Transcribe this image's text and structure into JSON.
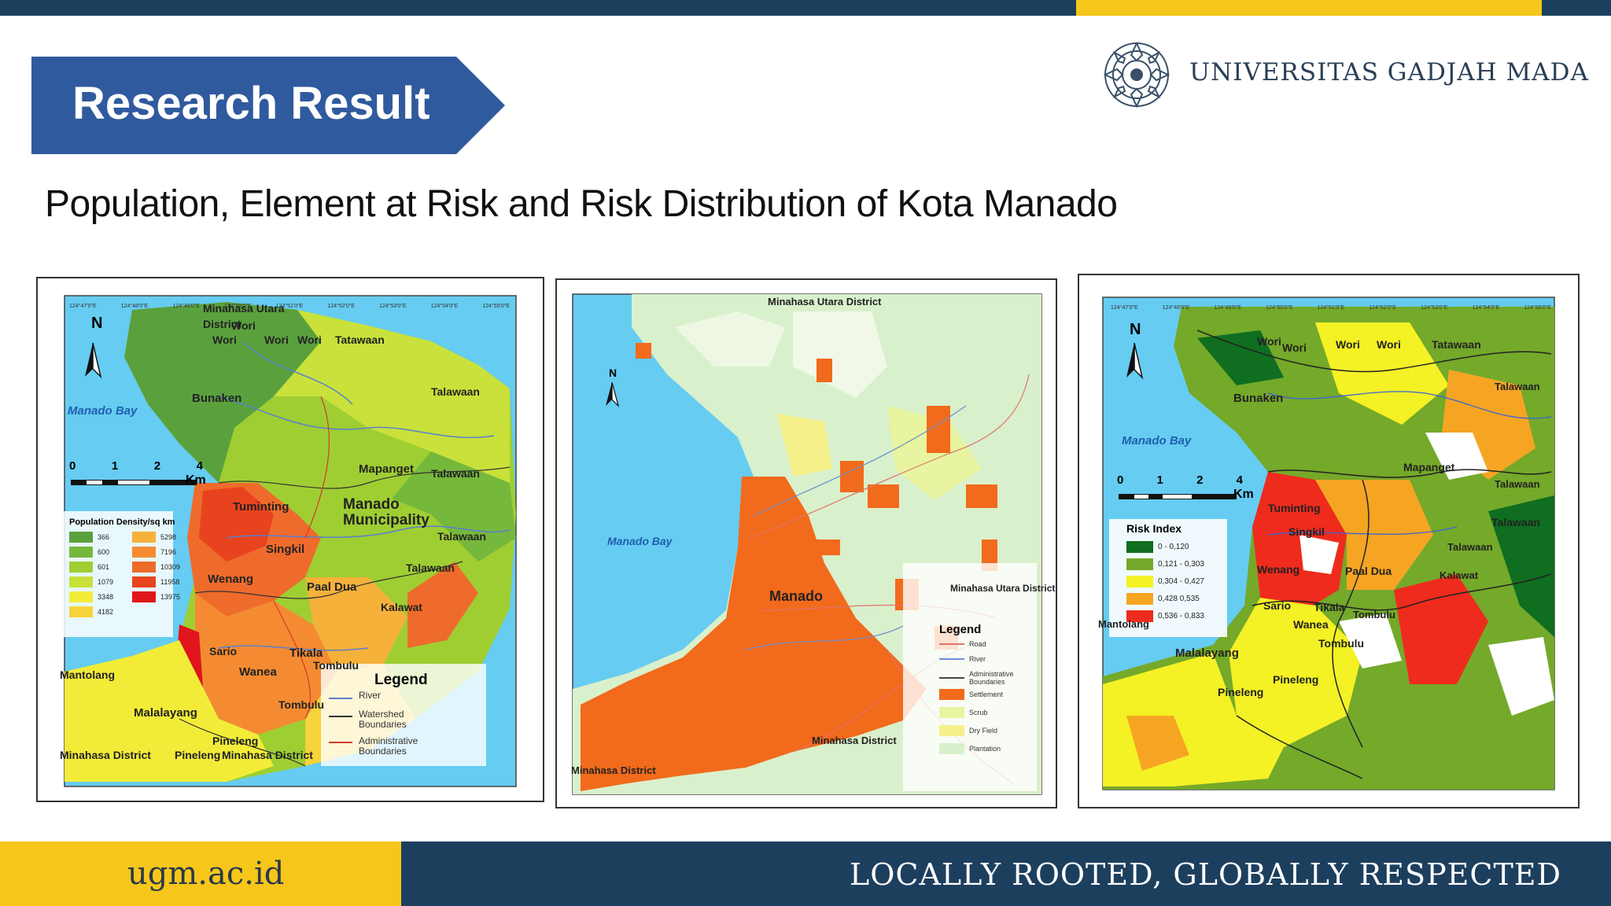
{
  "header": {
    "banner_title": "Research Result",
    "university": "UNIVERSITAS GADJAH MADA",
    "subtitle": "Population, Element at Risk and Risk Distribution of Kota Manado"
  },
  "colors": {
    "navy": "#1d3f5e",
    "gold": "#f6c61a",
    "banner_blue": "#2f5a9e",
    "sea": "#66ccf2"
  },
  "map1": {
    "bay_label": "Manado Bay",
    "north": "N",
    "scale_ticks": [
      "0",
      "1",
      "2",
      "4"
    ],
    "scale_unit": "Km",
    "places": [
      "Minahasa Utara District",
      "Wori",
      "Wori",
      "Wori",
      "Wori",
      "Tatawaan",
      "Bunaken",
      "Talawaan",
      "Mapanget",
      "Talawaan",
      "Tuminting",
      "Manado Municipality",
      "Talawaan",
      "Singkil",
      "Talawaan",
      "Wenang",
      "Paal Dua",
      "Kalawat",
      "Sario",
      "Tikala",
      "Wanea",
      "Tombulu",
      "Mantolang",
      "Malalayang",
      "Pineleng",
      "Tombulu",
      "Minahasa District",
      "Pineleng",
      "Minahasa District"
    ],
    "legend_title": "Population Density/sq km",
    "legend_items": [
      {
        "value": "366",
        "color": "#5aa13e"
      },
      {
        "value": "600",
        "color": "#76b83c"
      },
      {
        "value": "601",
        "color": "#9fce33"
      },
      {
        "value": "1079",
        "color": "#c9e13a"
      },
      {
        "value": "3348",
        "color": "#f2ec38"
      },
      {
        "value": "4182",
        "color": "#f6d33a"
      },
      {
        "value": "5298",
        "color": "#f6b13a"
      },
      {
        "value": "7196",
        "color": "#f48b32"
      },
      {
        "value": "10309",
        "color": "#ef6b2c"
      },
      {
        "value": "11958",
        "color": "#e8431f"
      },
      {
        "value": "13975",
        "color": "#e0161c"
      }
    ],
    "line_legend_title": "Legend",
    "line_legend": [
      "River",
      "Watershed Boundaries",
      "Administrative Boundaries"
    ],
    "top_ticks": [
      "124°47'0\"E",
      "124°48'0\"E",
      "124°49'0\"E",
      "124°50'0\"E",
      "124°51'0\"E",
      "124°52'0\"E",
      "124°53'0\"E",
      "124°54'0\"E",
      "124°55'0\"E"
    ]
  },
  "map2": {
    "bay_label": "Manado Bay",
    "north": "N",
    "places": [
      "Minahasa Utara District",
      "Manado",
      "Minahasa Utara District",
      "Minahasa District",
      "Minahasa District"
    ],
    "legend_title": "Legend",
    "legend_items": [
      {
        "label": "Road",
        "color": "#e0746a",
        "kind": "line"
      },
      {
        "label": "River",
        "color": "#6a8fd0",
        "kind": "line"
      },
      {
        "label": "Administrative Boundaries",
        "color": "#444444",
        "kind": "line"
      },
      {
        "label": "Settlement",
        "color": "#f26a1b",
        "kind": "box"
      },
      {
        "label": "Scrub",
        "color": "#e8f4a0",
        "kind": "box"
      },
      {
        "label": "Dry Field",
        "color": "#f5f08a",
        "kind": "box"
      },
      {
        "label": "Plantation",
        "color": "#d9f0cc",
        "kind": "box"
      }
    ]
  },
  "map3": {
    "bay_label": "Manado Bay",
    "north": "N",
    "scale_ticks": [
      "0",
      "1",
      "2",
      "4"
    ],
    "scale_unit": "Km",
    "places": [
      "Wori",
      "Wori",
      "Wori",
      "Wori",
      "Tatawaan",
      "Bunaken",
      "Talawaan",
      "Mapanget",
      "Talawaan",
      "Tuminting",
      "Talawaan",
      "Singkil",
      "Talawaan",
      "Wenang",
      "Paal Dua",
      "Kalawat",
      "Sario",
      "Tikala",
      "Wanea",
      "Tombulu",
      "Mantolang",
      "Malalayang",
      "Tombulu",
      "Pineleng",
      "Pineleng"
    ],
    "legend_title": "Risk Index",
    "legend_items": [
      {
        "label": "0 - 0,120",
        "color": "#0f6e1f"
      },
      {
        "label": "0,121 - 0,303",
        "color": "#74a92a"
      },
      {
        "label": "0,304 - 0,427",
        "color": "#f4f125"
      },
      {
        "label": "0,428 0,535",
        "color": "#f6a523"
      },
      {
        "label": "0,536 - 0,833",
        "color": "#ef2b1d"
      }
    ],
    "top_ticks": [
      "124°47'0\"E",
      "124°48'0\"E",
      "124°49'0\"E",
      "124°50'0\"E",
      "124°51'0\"E",
      "124°52'0\"E",
      "124°53'0\"E",
      "124°54'0\"E",
      "124°55'0\"E"
    ]
  },
  "footer": {
    "url": "ugm.ac.id",
    "tagline": "LOCALLY ROOTED, GLOBALLY RESPECTED"
  }
}
